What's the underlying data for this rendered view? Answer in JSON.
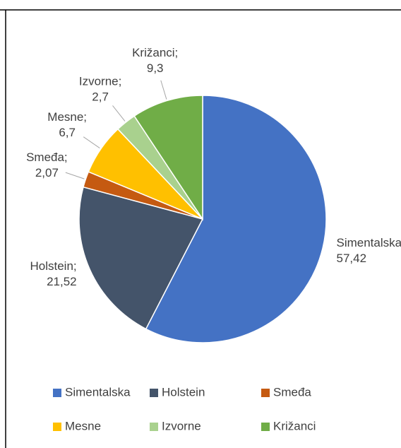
{
  "chart_data": {
    "type": "pie",
    "categories": [
      "Simentalska",
      "Holstein",
      "Smeđa",
      "Mesne",
      "Izvorne",
      "Križanci"
    ],
    "values": [
      57.42,
      21.52,
      2.07,
      6.7,
      2.7,
      9.3
    ],
    "value_labels": [
      "Simentalska ; 57,42",
      "Holstein; 21,52",
      "Smeđa; 2,07",
      "Mesne; 6,7",
      "Izvorne; 2,7",
      "Križanci; 9,3"
    ],
    "colors": [
      "#4472c4",
      "#44546a",
      "#c55a11",
      "#ffc000",
      "#a9d18e",
      "#70ad47"
    ],
    "legend": "bottom"
  }
}
